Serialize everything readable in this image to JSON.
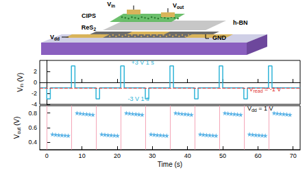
{
  "diagram": {
    "labels": [
      {
        "main": "V",
        "sub": "in"
      },
      {
        "main": "V",
        "sub": "out"
      },
      {
        "main": "CIPS"
      },
      {
        "main": "h-BN"
      },
      {
        "main": "ReS",
        "sub": "2"
      },
      {
        "main": "V",
        "sub": "dd"
      },
      {
        "main": "GND"
      }
    ]
  },
  "chart_data": [
    {
      "type": "line",
      "y_label": {
        "main": "V",
        "sub": "in",
        "rest": " (V)"
      },
      "x": [
        -2,
        0,
        0,
        1,
        1,
        7,
        7,
        8,
        8,
        14,
        14,
        15,
        15,
        21,
        21,
        22,
        22,
        28,
        28,
        29,
        29,
        35,
        35,
        36,
        36,
        42,
        42,
        43,
        43,
        49,
        49,
        50,
        50,
        56,
        56,
        57,
        57,
        63,
        63,
        64,
        64,
        72
      ],
      "values": [
        -1,
        -1,
        -3,
        -3,
        -1,
        -1,
        3,
        3,
        -1,
        -1,
        -3,
        -3,
        -1,
        -1,
        3,
        3,
        -1,
        -1,
        -3,
        -3,
        -1,
        -1,
        3,
        3,
        -1,
        -1,
        -3,
        -3,
        -1,
        -1,
        3,
        3,
        -1,
        -1,
        -3,
        -3,
        -1,
        -1,
        3,
        3,
        -1,
        -1
      ],
      "color": "#2fb4d8",
      "xlim": [
        -2,
        72
      ],
      "xticks": [
        0,
        10,
        20,
        30,
        40,
        50,
        60,
        70
      ],
      "ylim": [
        -4,
        4
      ],
      "yticks": [
        -4,
        -2,
        0,
        2
      ],
      "tick_labels": "y",
      "reference_line": {
        "value": -1,
        "color": "#e03030",
        "line_style": "dashed"
      },
      "annotations": [
        {
          "text": {
            "main": "+3 V 1 s"
          },
          "color": "#2fb4d8"
        },
        {
          "text": {
            "main": "-3 V 1 s"
          },
          "color": "#2fb4d8"
        },
        {
          "text": {
            "main": "V",
            "sub": "read",
            "rest": " = -1 V"
          },
          "color": "#e03030"
        }
      ]
    },
    {
      "type": "scatter",
      "x_label": {
        "main": "Time (s)"
      },
      "y_label": {
        "main": "V",
        "sub": "out",
        "rest": " (V)"
      },
      "x": [
        1.6,
        2.5,
        3.4,
        4.3,
        5.2,
        6.1,
        8.6,
        9.5,
        10.4,
        11.3,
        12.2,
        13.1,
        15.6,
        16.5,
        17.4,
        18.3,
        19.2,
        20.1,
        22.6,
        23.5,
        24.4,
        25.3,
        26.2,
        27.1,
        29.6,
        30.5,
        31.4,
        32.3,
        33.2,
        34.1,
        36.6,
        37.5,
        38.4,
        39.3,
        40.2,
        41.1,
        43.6,
        44.5,
        45.4,
        46.3,
        47.2,
        48.1,
        50.6,
        51.5,
        52.4,
        53.3,
        54.2,
        55.1,
        57.6,
        58.5,
        59.4,
        60.3,
        61.2,
        62.1,
        64.6,
        65.5,
        66.4,
        67.3,
        68.2,
        69.1
      ],
      "values": [
        0.51,
        0.505,
        0.5,
        0.498,
        0.495,
        0.492,
        0.8,
        0.795,
        0.79,
        0.786,
        0.782,
        0.778,
        0.51,
        0.505,
        0.5,
        0.498,
        0.495,
        0.492,
        0.8,
        0.795,
        0.79,
        0.786,
        0.782,
        0.778,
        0.51,
        0.505,
        0.5,
        0.498,
        0.495,
        0.492,
        0.8,
        0.795,
        0.79,
        0.786,
        0.782,
        0.778,
        0.51,
        0.505,
        0.5,
        0.498,
        0.495,
        0.492,
        0.8,
        0.795,
        0.79,
        0.786,
        0.782,
        0.778,
        0.51,
        0.505,
        0.5,
        0.498,
        0.495,
        0.492,
        0.8,
        0.795,
        0.79,
        0.786,
        0.782,
        0.778
      ],
      "color": "#2f9fe0",
      "marker": "star",
      "xlim": [
        -2,
        72
      ],
      "xticks": [
        0,
        10,
        20,
        30,
        40,
        50,
        60,
        70
      ],
      "ylim": [
        0.3,
        0.9
      ],
      "yticks": [
        0.4,
        0.6,
        0.8
      ],
      "marker_lines": {
        "x": [
          0,
          7,
          14,
          21,
          28,
          35,
          42,
          49,
          56,
          63
        ],
        "color": "#f4a6b8"
      },
      "annotations": [
        {
          "text": {
            "main": "V",
            "sub": "dd",
            "rest": " = 1 V"
          },
          "color": "#000000"
        }
      ]
    }
  ]
}
